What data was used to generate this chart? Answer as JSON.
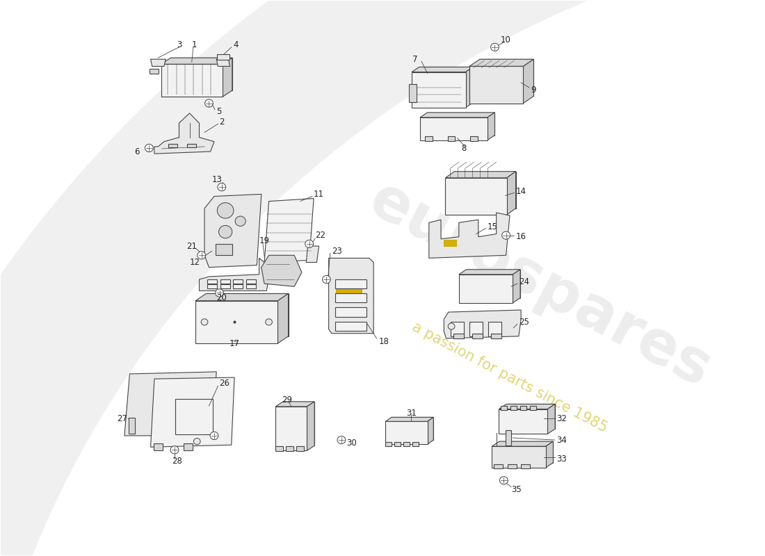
{
  "bg": "#ffffff",
  "lc": "#444444",
  "lw": 0.8,
  "fc_light": "#f2f2f2",
  "fc_mid": "#e8e8e8",
  "fc_dark": "#d8d8d8",
  "fc_shadow": "#cccccc",
  "yellow": "#c8a800",
  "yellow_fill": "#d4b000",
  "wm_color": "#c0c0c0",
  "wm_alpha": 0.28,
  "wm_sub_color": "#c8b400",
  "wm_sub_alpha": 0.55,
  "label_fs": 8.5,
  "label_color": "#222222",
  "xlim": [
    0,
    10
  ],
  "ylim": [
    0,
    7.8
  ],
  "figw": 11.0,
  "figh": 8.0
}
